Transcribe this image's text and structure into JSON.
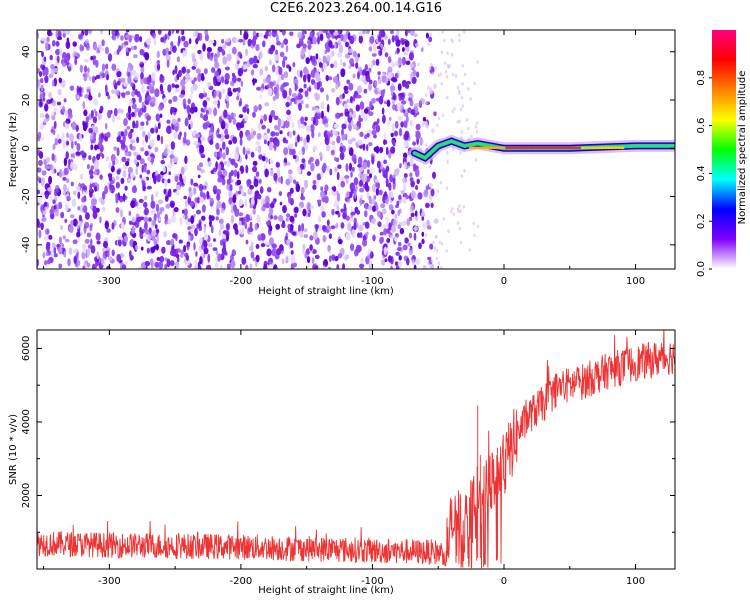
{
  "figure_title": "C2E6.2023.264.00.14.G16",
  "chart_data": [
    {
      "type": "heatmap",
      "xlabel": "Height of straight line (km)",
      "ylabel": "Frequency (Hz)",
      "xlim": [
        -355,
        130
      ],
      "ylim": [
        -50,
        49
      ],
      "xticks": [
        -300,
        -200,
        -100,
        0,
        100
      ],
      "yticks": [
        -40,
        -20,
        0,
        20,
        40
      ],
      "noise_region_x": [
        -355,
        -65
      ],
      "signal_ridge": [
        {
          "x": -68,
          "y": -2
        },
        {
          "x": -60,
          "y": -4
        },
        {
          "x": -50,
          "y": 1
        },
        {
          "x": -40,
          "y": 3
        },
        {
          "x": -30,
          "y": 1
        },
        {
          "x": -20,
          "y": 2
        },
        {
          "x": -10,
          "y": 1
        },
        {
          "x": 0,
          "y": 0
        },
        {
          "x": 50,
          "y": 0
        },
        {
          "x": 100,
          "y": 1
        },
        {
          "x": 130,
          "y": 1
        }
      ],
      "colorbar": {
        "label": "Normalized spectral amplitude",
        "range": [
          0,
          1
        ],
        "ticks": [
          0.0,
          0.2,
          0.4,
          0.6,
          0.8
        ],
        "tick_labels": [
          "0.0",
          "0.2",
          "0.4",
          "0.6",
          "0.8"
        ],
        "colormap": [
          "#ffffff",
          "#7f00ff",
          "#0000ff",
          "#00ffff",
          "#00ff00",
          "#ffff00",
          "#ff8000",
          "#ff0000",
          "#ff0080"
        ]
      }
    },
    {
      "type": "line",
      "xlabel": "Height of straight line (km)",
      "ylabel": "SNR (10 * v/v)",
      "xlim": [
        -355,
        130
      ],
      "ylim": [
        0,
        6500
      ],
      "xticks": [
        -300,
        -200,
        -100,
        0,
        100
      ],
      "yticks": [
        2000,
        4000,
        6000
      ],
      "series_color": "#ee3333",
      "envelope": [
        {
          "x": -355,
          "y": 700
        },
        {
          "x": -300,
          "y": 650
        },
        {
          "x": -200,
          "y": 600
        },
        {
          "x": -100,
          "y": 500
        },
        {
          "x": -45,
          "y": 450
        },
        {
          "x": -40,
          "y": 1200
        },
        {
          "x": -30,
          "y": 1300
        },
        {
          "x": -20,
          "y": 1800
        },
        {
          "x": -10,
          "y": 2300
        },
        {
          "x": 0,
          "y": 2800
        },
        {
          "x": 10,
          "y": 3700
        },
        {
          "x": 20,
          "y": 4200
        },
        {
          "x": 30,
          "y": 4500
        },
        {
          "x": 40,
          "y": 4900
        },
        {
          "x": 60,
          "y": 5100
        },
        {
          "x": 80,
          "y": 5400
        },
        {
          "x": 100,
          "y": 5600
        },
        {
          "x": 130,
          "y": 5800
        }
      ]
    }
  ],
  "colors": {
    "frame": "#000000",
    "noise_purple": "#7a22e8",
    "noise_light": "#d9c2f7",
    "ridge_dark": "#2200aa"
  }
}
